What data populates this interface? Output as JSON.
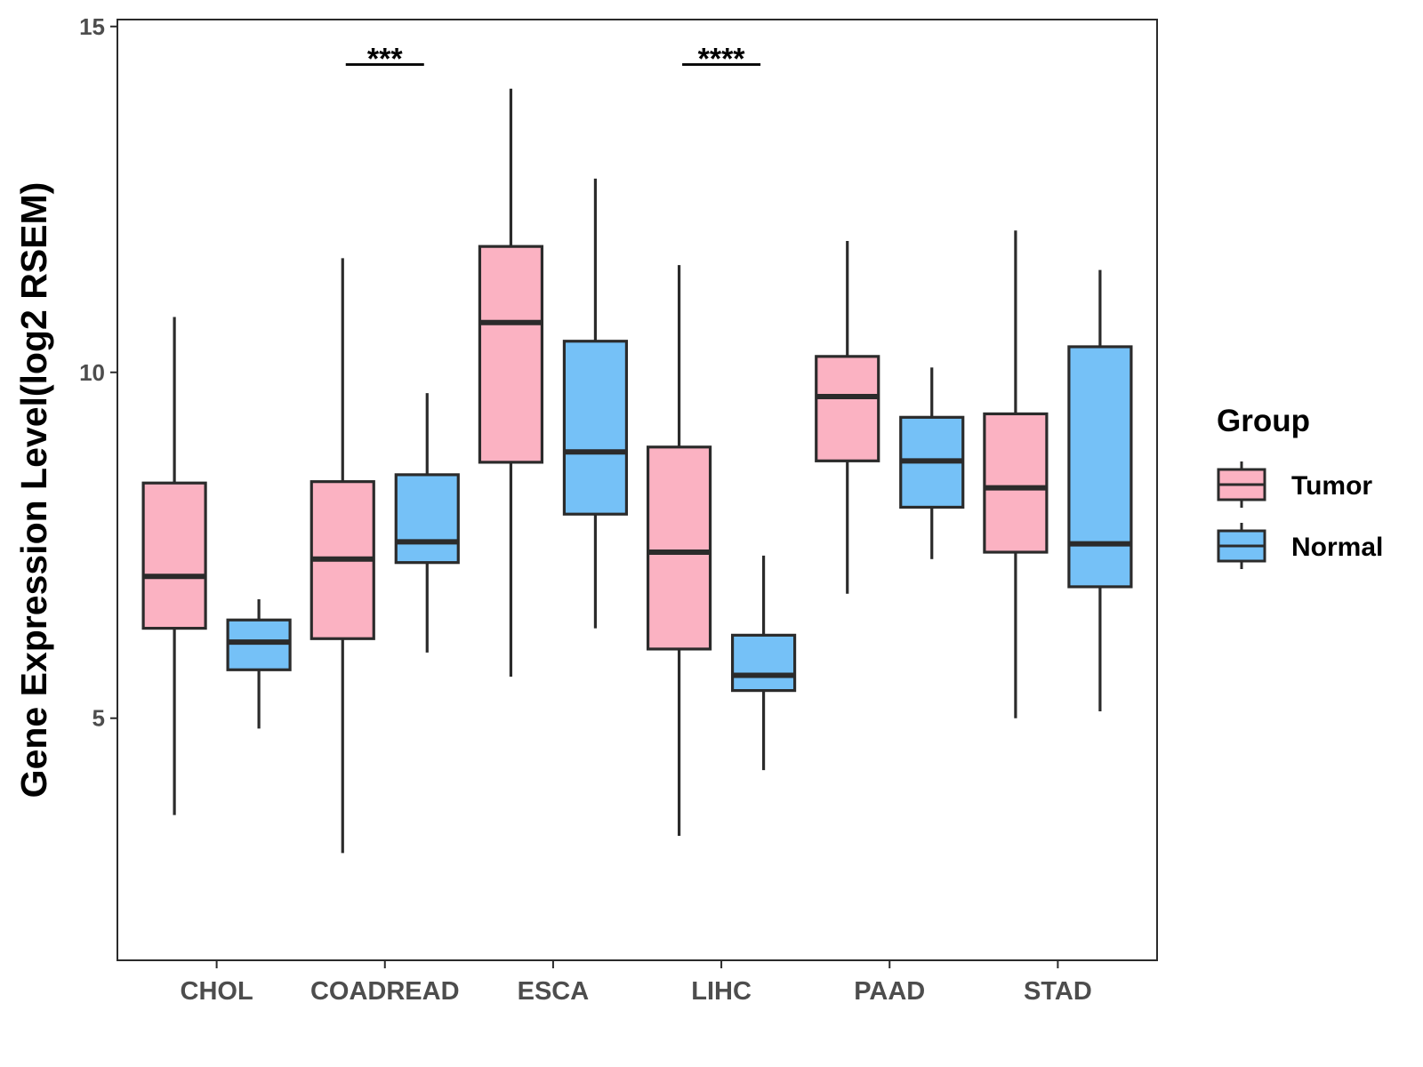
{
  "chart_data": {
    "type": "boxplot",
    "title": "",
    "xlabel": "",
    "ylabel": "Gene Expression Level(log2 RSEM)",
    "ylim": [
      1.5,
      15.1
    ],
    "y_ticks": [
      5,
      10,
      15
    ],
    "y_tick_labels": [
      "5",
      "10",
      "15"
    ],
    "grid": false,
    "categories": [
      "CHOL",
      "COADREAD",
      "ESCA",
      "LIHC",
      "PAAD",
      "STAD"
    ],
    "legend": {
      "title": "Group",
      "position": "right",
      "entries": [
        {
          "name": "Tumor",
          "color": "#FBB2C2"
        },
        {
          "name": "Normal",
          "color": "#75C1F7"
        }
      ]
    },
    "series": [
      {
        "name": "Tumor",
        "color": "#FBB2C2",
        "boxes": [
          {
            "category": "CHOL",
            "min": 3.6,
            "q1": 6.3,
            "median": 7.05,
            "q3": 8.4,
            "max": 10.8
          },
          {
            "category": "COADREAD",
            "min": 3.05,
            "q1": 6.15,
            "median": 7.3,
            "q3": 8.42,
            "max": 11.65
          },
          {
            "category": "ESCA",
            "min": 5.6,
            "q1": 8.7,
            "median": 10.72,
            "q3": 11.82,
            "max": 14.1
          },
          {
            "category": "LIHC",
            "min": 3.3,
            "q1": 6.0,
            "median": 7.4,
            "q3": 8.92,
            "max": 11.55
          },
          {
            "category": "PAAD",
            "min": 6.8,
            "q1": 8.72,
            "median": 9.65,
            "q3": 10.23,
            "max": 11.9
          },
          {
            "category": "STAD",
            "min": 5.0,
            "q1": 7.4,
            "median": 8.33,
            "q3": 9.4,
            "max": 12.05
          }
        ]
      },
      {
        "name": "Normal",
        "color": "#75C1F7",
        "boxes": [
          {
            "category": "CHOL",
            "min": 4.85,
            "q1": 5.7,
            "median": 6.1,
            "q3": 6.42,
            "max": 6.72
          },
          {
            "category": "COADREAD",
            "min": 5.95,
            "q1": 7.25,
            "median": 7.55,
            "q3": 8.52,
            "max": 9.7
          },
          {
            "category": "ESCA",
            "min": 6.3,
            "q1": 7.95,
            "median": 8.85,
            "q3": 10.45,
            "max": 12.8
          },
          {
            "category": "LIHC",
            "min": 4.25,
            "q1": 5.4,
            "median": 5.62,
            "q3": 6.2,
            "max": 7.35
          },
          {
            "category": "PAAD",
            "min": 7.3,
            "q1": 8.05,
            "median": 8.72,
            "q3": 9.35,
            "max": 10.07
          },
          {
            "category": "STAD",
            "min": 5.1,
            "q1": 6.9,
            "median": 7.52,
            "q3": 10.37,
            "max": 11.48
          }
        ]
      }
    ],
    "annotations": [
      {
        "category": "COADREAD",
        "label": "***",
        "y": 14.45
      },
      {
        "category": "LIHC",
        "label": "****",
        "y": 14.45
      }
    ]
  }
}
